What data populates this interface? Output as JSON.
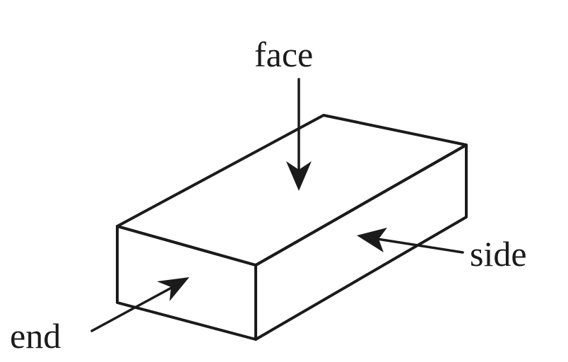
{
  "labels": {
    "face": "face",
    "side": "side",
    "end": "end"
  },
  "colors": {
    "ink": "#1b1b1b",
    "background": "#ffffff"
  }
}
